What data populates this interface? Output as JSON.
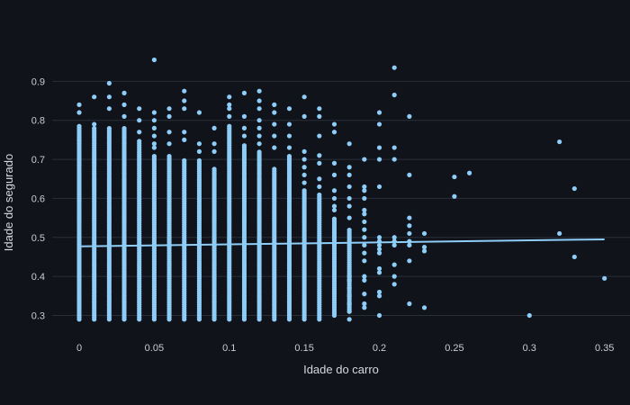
{
  "chart_data": {
    "type": "scatter",
    "title": "",
    "xlabel": "Idade do carro",
    "ylabel": "Idade do segurado",
    "xlim": [
      -0.018,
      0.367
    ],
    "ylim": [
      0.255,
      0.97
    ],
    "x_ticks": [
      0,
      0.05,
      0.1,
      0.15,
      0.2,
      0.25,
      0.3,
      0.35
    ],
    "y_ticks": [
      0.3,
      0.4,
      0.5,
      0.6,
      0.7,
      0.8,
      0.9
    ],
    "x_tick_labels": [
      "0",
      "0.05",
      "0.1",
      "0.15",
      "0.2",
      "0.25",
      "0.3",
      "0.35"
    ],
    "y_tick_labels": [
      "0.3",
      "0.4",
      "0.5",
      "0.6",
      "0.7",
      "0.8",
      "0.9"
    ],
    "grid": "horizontal",
    "legend": "none",
    "colors": {
      "points": "#8ecdf8",
      "trendline": "#8ecdf8",
      "background": "#10131a",
      "grid": "#2a2e38"
    },
    "dense_columns": [
      {
        "x": 0,
        "ymin": 0.29,
        "ymax": 0.79
      },
      {
        "x": 0.01,
        "ymin": 0.29,
        "ymax": 0.78
      },
      {
        "x": 0.02,
        "ymin": 0.29,
        "ymax": 0.78
      },
      {
        "x": 0.03,
        "ymin": 0.29,
        "ymax": 0.78
      },
      {
        "x": 0.04,
        "ymin": 0.29,
        "ymax": 0.75
      },
      {
        "x": 0.05,
        "ymin": 0.29,
        "ymax": 0.71
      },
      {
        "x": 0.06,
        "ymin": 0.29,
        "ymax": 0.71
      },
      {
        "x": 0.07,
        "ymin": 0.29,
        "ymax": 0.7
      },
      {
        "x": 0.08,
        "ymin": 0.29,
        "ymax": 0.7
      },
      {
        "x": 0.09,
        "ymin": 0.29,
        "ymax": 0.68
      },
      {
        "x": 0.1,
        "ymin": 0.29,
        "ymax": 0.79
      },
      {
        "x": 0.11,
        "ymin": 0.29,
        "ymax": 0.74
      },
      {
        "x": 0.12,
        "ymin": 0.29,
        "ymax": 0.72
      },
      {
        "x": 0.13,
        "ymin": 0.29,
        "ymax": 0.68
      },
      {
        "x": 0.14,
        "ymin": 0.29,
        "ymax": 0.71
      },
      {
        "x": 0.15,
        "ymin": 0.29,
        "ymax": 0.62
      },
      {
        "x": 0.16,
        "ymin": 0.29,
        "ymax": 0.61
      },
      {
        "x": 0.17,
        "ymin": 0.3,
        "ymax": 0.55
      },
      {
        "x": 0.18,
        "ymin": 0.31,
        "ymax": 0.52
      }
    ],
    "points": [
      [
        0,
        0.84
      ],
      [
        0,
        0.82
      ],
      [
        0,
        0.75
      ],
      [
        0.01,
        0.86
      ],
      [
        0.01,
        0.79
      ],
      [
        0.02,
        0.895
      ],
      [
        0.02,
        0.86
      ],
      [
        0.02,
        0.83
      ],
      [
        0.03,
        0.87
      ],
      [
        0.03,
        0.84
      ],
      [
        0.03,
        0.81
      ],
      [
        0.04,
        0.83
      ],
      [
        0.04,
        0.8
      ],
      [
        0.04,
        0.77
      ],
      [
        0.05,
        0.955
      ],
      [
        0.05,
        0.82
      ],
      [
        0.05,
        0.8
      ],
      [
        0.05,
        0.78
      ],
      [
        0.05,
        0.76
      ],
      [
        0.05,
        0.74
      ],
      [
        0.05,
        0.73
      ],
      [
        0.06,
        0.83
      ],
      [
        0.06,
        0.81
      ],
      [
        0.06,
        0.77
      ],
      [
        0.06,
        0.74
      ],
      [
        0.07,
        0.875
      ],
      [
        0.07,
        0.85
      ],
      [
        0.07,
        0.83
      ],
      [
        0.07,
        0.77
      ],
      [
        0.07,
        0.75
      ],
      [
        0.08,
        0.82
      ],
      [
        0.08,
        0.74
      ],
      [
        0.08,
        0.72
      ],
      [
        0.09,
        0.78
      ],
      [
        0.09,
        0.74
      ],
      [
        0.09,
        0.72
      ],
      [
        0.1,
        0.86
      ],
      [
        0.1,
        0.84
      ],
      [
        0.1,
        0.83
      ],
      [
        0.1,
        0.81
      ],
      [
        0.11,
        0.87
      ],
      [
        0.11,
        0.81
      ],
      [
        0.11,
        0.78
      ],
      [
        0.11,
        0.76
      ],
      [
        0.12,
        0.875
      ],
      [
        0.12,
        0.85
      ],
      [
        0.12,
        0.83
      ],
      [
        0.12,
        0.8
      ],
      [
        0.12,
        0.78
      ],
      [
        0.12,
        0.76
      ],
      [
        0.12,
        0.74
      ],
      [
        0.13,
        0.84
      ],
      [
        0.13,
        0.82
      ],
      [
        0.13,
        0.79
      ],
      [
        0.13,
        0.76
      ],
      [
        0.13,
        0.73
      ],
      [
        0.14,
        0.83
      ],
      [
        0.14,
        0.79
      ],
      [
        0.14,
        0.76
      ],
      [
        0.14,
        0.73
      ],
      [
        0.15,
        0.86
      ],
      [
        0.15,
        0.81
      ],
      [
        0.15,
        0.72
      ],
      [
        0.15,
        0.7
      ],
      [
        0.15,
        0.68
      ],
      [
        0.15,
        0.66
      ],
      [
        0.15,
        0.64
      ],
      [
        0.16,
        0.83
      ],
      [
        0.16,
        0.81
      ],
      [
        0.16,
        0.76
      ],
      [
        0.16,
        0.71
      ],
      [
        0.16,
        0.69
      ],
      [
        0.16,
        0.65
      ],
      [
        0.16,
        0.63
      ],
      [
        0.17,
        0.79
      ],
      [
        0.17,
        0.77
      ],
      [
        0.17,
        0.69
      ],
      [
        0.17,
        0.66
      ],
      [
        0.17,
        0.62
      ],
      [
        0.17,
        0.6
      ],
      [
        0.17,
        0.58
      ],
      [
        0.17,
        0.57
      ],
      [
        0.18,
        0.74
      ],
      [
        0.18,
        0.68
      ],
      [
        0.18,
        0.66
      ],
      [
        0.18,
        0.63
      ],
      [
        0.18,
        0.6
      ],
      [
        0.18,
        0.58
      ],
      [
        0.18,
        0.55
      ],
      [
        0.18,
        0.4
      ],
      [
        0.18,
        0.39
      ],
      [
        0.18,
        0.37
      ],
      [
        0.18,
        0.35
      ],
      [
        0.18,
        0.33
      ],
      [
        0.18,
        0.31
      ],
      [
        0.18,
        0.29
      ],
      [
        0.19,
        0.7
      ],
      [
        0.19,
        0.63
      ],
      [
        0.19,
        0.62
      ],
      [
        0.19,
        0.6
      ],
      [
        0.19,
        0.57
      ],
      [
        0.19,
        0.56
      ],
      [
        0.19,
        0.54
      ],
      [
        0.19,
        0.52
      ],
      [
        0.19,
        0.5
      ],
      [
        0.19,
        0.48
      ],
      [
        0.19,
        0.46
      ],
      [
        0.19,
        0.44
      ],
      [
        0.19,
        0.4
      ],
      [
        0.19,
        0.39
      ],
      [
        0.19,
        0.355
      ],
      [
        0.19,
        0.33
      ],
      [
        0.19,
        0.32
      ],
      [
        0.2,
        0.82
      ],
      [
        0.2,
        0.79
      ],
      [
        0.2,
        0.73
      ],
      [
        0.2,
        0.7
      ],
      [
        0.2,
        0.63
      ],
      [
        0.2,
        0.5
      ],
      [
        0.2,
        0.49
      ],
      [
        0.2,
        0.48
      ],
      [
        0.2,
        0.47
      ],
      [
        0.2,
        0.46
      ],
      [
        0.2,
        0.42
      ],
      [
        0.2,
        0.41
      ],
      [
        0.2,
        0.36
      ],
      [
        0.2,
        0.35
      ],
      [
        0.2,
        0.3
      ],
      [
        0.21,
        0.935
      ],
      [
        0.21,
        0.865
      ],
      [
        0.21,
        0.73
      ],
      [
        0.21,
        0.7
      ],
      [
        0.21,
        0.5
      ],
      [
        0.21,
        0.49
      ],
      [
        0.21,
        0.48
      ],
      [
        0.21,
        0.43
      ],
      [
        0.21,
        0.4
      ],
      [
        0.21,
        0.38
      ],
      [
        0.22,
        0.81
      ],
      [
        0.22,
        0.66
      ],
      [
        0.22,
        0.55
      ],
      [
        0.22,
        0.53
      ],
      [
        0.22,
        0.51
      ],
      [
        0.22,
        0.49
      ],
      [
        0.22,
        0.48
      ],
      [
        0.22,
        0.44
      ],
      [
        0.22,
        0.33
      ],
      [
        0.23,
        0.51
      ],
      [
        0.23,
        0.475
      ],
      [
        0.23,
        0.465
      ],
      [
        0.23,
        0.32
      ],
      [
        0.25,
        0.655
      ],
      [
        0.25,
        0.605
      ],
      [
        0.26,
        0.665
      ],
      [
        0.3,
        0.3
      ],
      [
        0.32,
        0.745
      ],
      [
        0.32,
        0.51
      ],
      [
        0.33,
        0.625
      ],
      [
        0.33,
        0.45
      ],
      [
        0.35,
        0.395
      ]
    ],
    "trendline": {
      "x": [
        0,
        0.35
      ],
      "y": [
        0.477,
        0.495
      ]
    }
  }
}
